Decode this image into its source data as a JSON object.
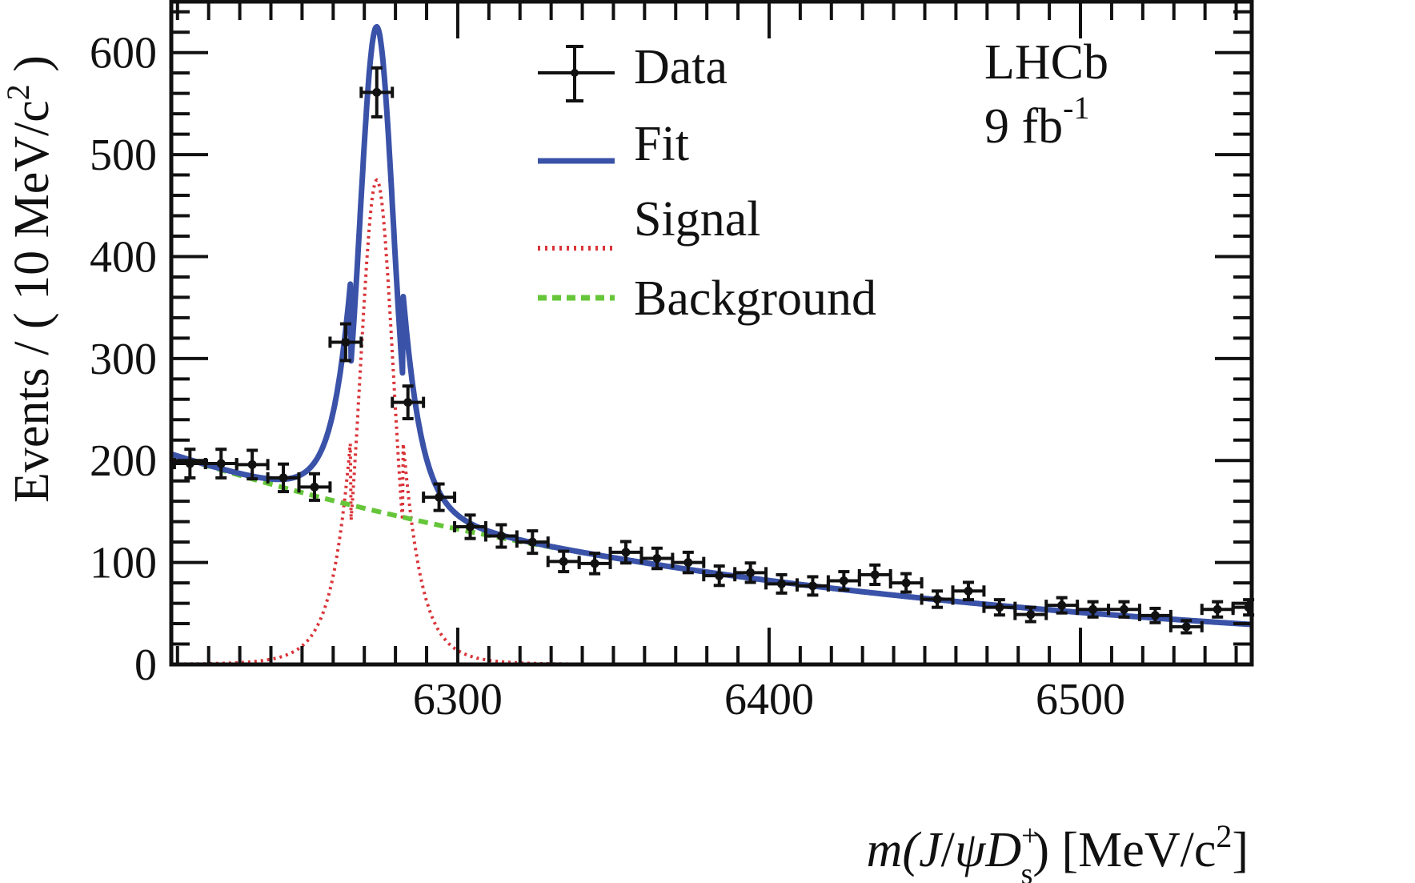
{
  "chart_data": {
    "type": "scatter",
    "title": "",
    "xlabel": {
      "pre": "m(",
      "J": "J",
      "slash": "/",
      "psi": "ψ",
      "D": "D",
      "sup": "+",
      "sub": "s",
      "post": ") [MeV/c",
      "exp": "2",
      "close": "]"
    },
    "ylabel": {
      "main": "Events / ( 10 MeV/c",
      "exp": "2",
      "close": " )"
    },
    "xlim": [
      6208,
      6555
    ],
    "ylim": [
      0,
      650
    ],
    "x_major_ticks": [
      6300,
      6400,
      6500
    ],
    "x_tick_labels": [
      "6300",
      "6400",
      "6500"
    ],
    "x_minor_step": 10,
    "y_major_ticks": [
      0,
      100,
      200,
      300,
      400,
      500,
      600
    ],
    "y_tick_labels": [
      "0",
      "100",
      "200",
      "300",
      "400",
      "500",
      "600"
    ],
    "y_minor_step": 20,
    "bin_width": 10,
    "grid": false,
    "legend": {
      "placement": "top-center",
      "entries": [
        {
          "label": "Data",
          "style": "errorbar",
          "color": "#111111"
        },
        {
          "label": "Fit",
          "style": "solid",
          "color": "#3a52a8"
        },
        {
          "label": "Signal",
          "style": "dotted",
          "color": "#d9343a"
        },
        {
          "label": "Background",
          "style": "dashed",
          "color": "#66c63a"
        }
      ]
    },
    "annotations": {
      "experiment": "LHCb",
      "lumi": "9 fb",
      "lumi_exp": "-1"
    },
    "series": [
      {
        "name": "Data",
        "x": [
          6214,
          6224,
          6234,
          6244,
          6254,
          6264,
          6274,
          6284,
          6294,
          6304,
          6314,
          6324,
          6334,
          6344,
          6354,
          6364,
          6374,
          6384,
          6394,
          6404,
          6414,
          6424,
          6434,
          6444,
          6454,
          6464,
          6474,
          6484,
          6494,
          6504,
          6514,
          6524,
          6534,
          6544,
          6554
        ],
        "y": [
          197,
          197,
          196,
          183,
          174,
          316,
          561,
          257,
          164,
          135,
          126,
          120,
          101,
          99,
          110,
          104,
          100,
          87,
          90,
          79,
          77,
          82,
          88,
          80,
          64,
          72,
          56,
          49,
          58,
          54,
          54,
          48,
          37,
          54,
          56
        ],
        "yerr": [
          14,
          14,
          14,
          13.5,
          13,
          18,
          24,
          16,
          13,
          11.5,
          11,
          11,
          10,
          10,
          10.5,
          10,
          10,
          9.5,
          9.5,
          9,
          9,
          9,
          9.5,
          9,
          8,
          8.5,
          7.5,
          7,
          7.5,
          7.5,
          7.5,
          7,
          6,
          7.5,
          7.5
        ]
      },
      {
        "name": "Fit",
        "model": "signal + background",
        "signal": {
          "mean": 6274,
          "sigma": 5.3,
          "peak": 475,
          "tail_power": 2.2
        },
        "background": {
          "a0": 206,
          "slope": 0.00478,
          "x0": 6208
        }
      },
      {
        "name": "Signal"
      },
      {
        "name": "Background"
      }
    ]
  }
}
